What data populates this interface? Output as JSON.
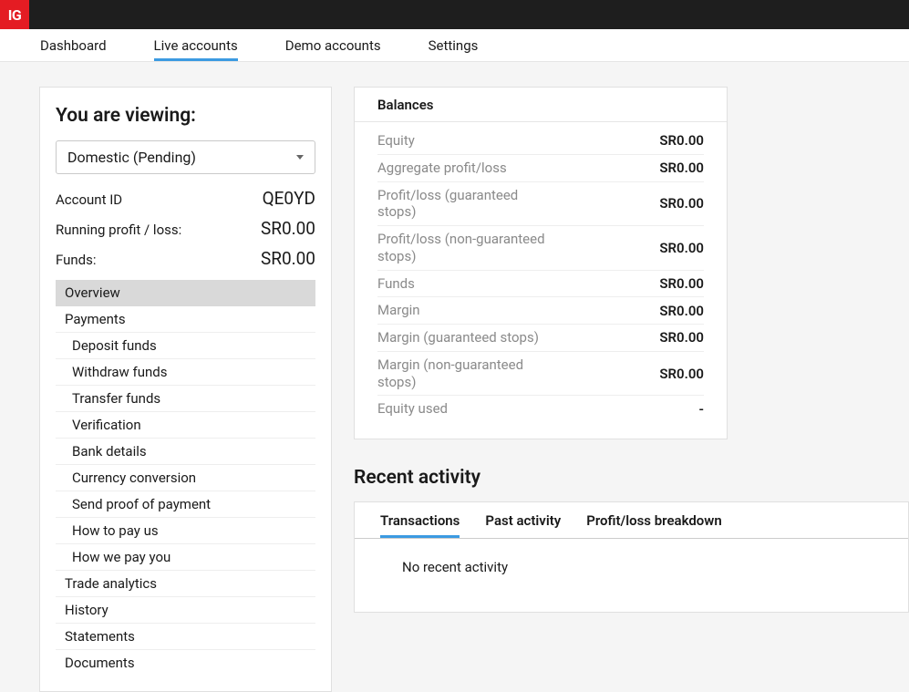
{
  "logo": "IG",
  "nav": {
    "items": [
      {
        "label": "Dashboard",
        "active": false
      },
      {
        "label": "Live accounts",
        "active": true
      },
      {
        "label": "Demo accounts",
        "active": false
      },
      {
        "label": "Settings",
        "active": false
      }
    ]
  },
  "sidebar": {
    "title": "You are viewing:",
    "account_select": "Domestic (Pending)",
    "info": [
      {
        "label": "Account ID",
        "value": "QE0YD"
      },
      {
        "label": "Running profit / loss:",
        "value": "SR0.00"
      },
      {
        "label": "Funds:",
        "value": "SR0.00"
      }
    ],
    "menu": [
      {
        "label": "Overview",
        "sub": false,
        "active": true
      },
      {
        "label": "Payments",
        "sub": false,
        "active": false
      },
      {
        "label": "Deposit funds",
        "sub": true,
        "active": false
      },
      {
        "label": "Withdraw funds",
        "sub": true,
        "active": false
      },
      {
        "label": "Transfer funds",
        "sub": true,
        "active": false
      },
      {
        "label": "Verification",
        "sub": true,
        "active": false
      },
      {
        "label": "Bank details",
        "sub": true,
        "active": false
      },
      {
        "label": "Currency conversion",
        "sub": true,
        "active": false
      },
      {
        "label": "Send proof of payment",
        "sub": true,
        "active": false
      },
      {
        "label": "How to pay us",
        "sub": true,
        "active": false
      },
      {
        "label": "How we pay you",
        "sub": true,
        "active": false
      },
      {
        "label": "Trade analytics",
        "sub": false,
        "active": false
      },
      {
        "label": "History",
        "sub": false,
        "active": false
      },
      {
        "label": "Statements",
        "sub": false,
        "active": false
      },
      {
        "label": "Documents",
        "sub": false,
        "active": false
      }
    ]
  },
  "balances": {
    "title": "Balances",
    "rows": [
      {
        "label": "Equity",
        "value": "SR0.00"
      },
      {
        "label": "Aggregate profit/loss",
        "value": "SR0.00"
      },
      {
        "label": "Profit/loss (guaranteed stops)",
        "value": "SR0.00"
      },
      {
        "label": "Profit/loss (non-guaranteed stops)",
        "value": "SR0.00"
      },
      {
        "label": "Funds",
        "value": "SR0.00"
      },
      {
        "label": "Margin",
        "value": "SR0.00"
      },
      {
        "label": "Margin (guaranteed stops)",
        "value": "SR0.00"
      },
      {
        "label": "Margin (non-guaranteed stops)",
        "value": "SR0.00"
      },
      {
        "label": "Equity used",
        "value": "-"
      }
    ]
  },
  "activity": {
    "title": "Recent activity",
    "tabs": [
      {
        "label": "Transactions",
        "active": true
      },
      {
        "label": "Past activity",
        "active": false
      },
      {
        "label": "Profit/loss breakdown",
        "active": false
      }
    ],
    "empty": "No recent activity"
  },
  "colors": {
    "brand_red": "#e41c23",
    "topbar_bg": "#1e1e1e",
    "accent_blue": "#3b9ae1",
    "page_bg": "#f5f5f5",
    "border": "#e0e0e0",
    "muted_text": "#8a8a8a",
    "menu_active_bg": "#d9d9d9"
  }
}
